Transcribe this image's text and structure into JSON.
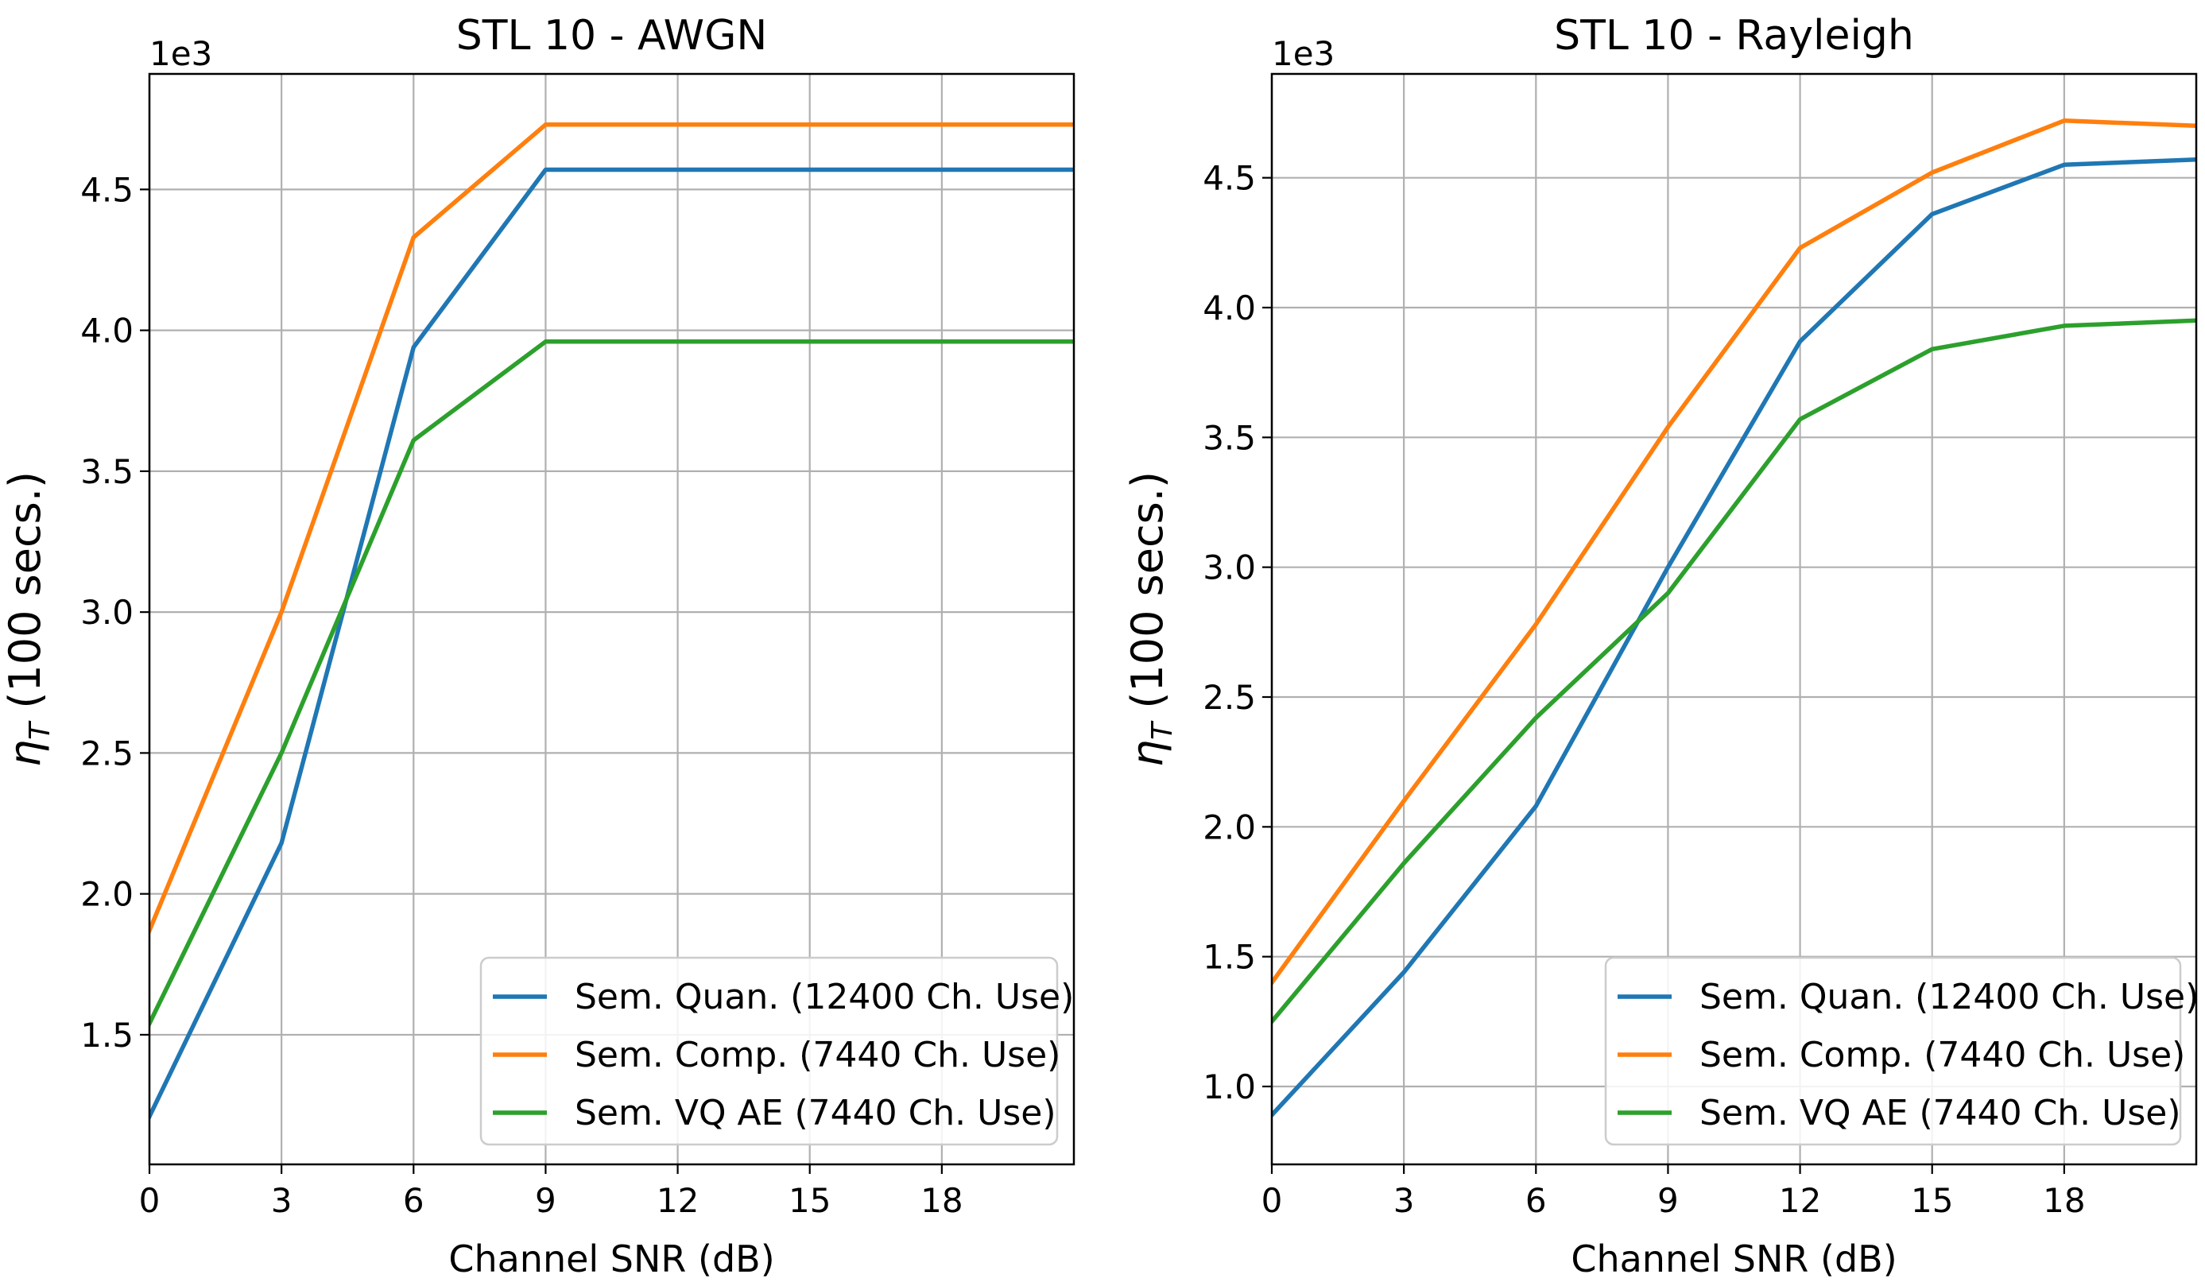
{
  "chart_data": [
    {
      "type": "line",
      "title": "STL 10 - AWGN",
      "xlabel": "Channel SNR (dB)",
      "ylabel_symbol": "η",
      "ylabel_subscript": "T",
      "ylabel_rest": " (100 secs.)",
      "y_offset_label": "1e3",
      "xlim": [
        0,
        21
      ],
      "ylim": [
        1.04,
        4.91
      ],
      "xticks": [
        0,
        3,
        6,
        9,
        12,
        15,
        18
      ],
      "xtick_labels": [
        "0",
        "3",
        "6",
        "9",
        "12",
        "15",
        "18"
      ],
      "yticks": [
        1.5,
        2.0,
        2.5,
        3.0,
        3.5,
        4.0,
        4.5
      ],
      "ytick_labels": [
        "1.5",
        "2.0",
        "2.5",
        "3.0",
        "3.5",
        "4.0",
        "4.5"
      ],
      "grid": true,
      "legend_position": "lower-right",
      "x": [
        0,
        3,
        6,
        9,
        12,
        15,
        18,
        21
      ],
      "series": [
        {
          "name": "Sem. Quan. (12400 Ch. Use)",
          "color": "#1f77b4",
          "values": [
            1.21,
            2.18,
            3.94,
            4.57,
            4.57,
            4.57,
            4.57,
            4.57
          ]
        },
        {
          "name": "Sem. Comp. (7440 Ch. Use)",
          "color": "#ff7f0e",
          "values": [
            1.87,
            3.0,
            4.33,
            4.73,
            4.73,
            4.73,
            4.73,
            4.73
          ]
        },
        {
          "name": "Sem. VQ AE (7440 Ch. Use)",
          "color": "#2ca02c",
          "values": [
            1.54,
            2.5,
            3.61,
            3.96,
            3.96,
            3.96,
            3.96,
            3.96
          ]
        }
      ]
    },
    {
      "type": "line",
      "title": "STL 10 - Rayleigh",
      "xlabel": "Channel SNR (dB)",
      "ylabel_symbol": "η",
      "ylabel_subscript": "T",
      "ylabel_rest": " (100 secs.)",
      "y_offset_label": "1e3",
      "xlim": [
        0,
        21
      ],
      "ylim": [
        0.7,
        4.9
      ],
      "xticks": [
        0,
        3,
        6,
        9,
        12,
        15,
        18
      ],
      "xtick_labels": [
        "0",
        "3",
        "6",
        "9",
        "12",
        "15",
        "18"
      ],
      "yticks": [
        1.0,
        1.5,
        2.0,
        2.5,
        3.0,
        3.5,
        4.0,
        4.5
      ],
      "ytick_labels": [
        "1.0",
        "1.5",
        "2.0",
        "2.5",
        "3.0",
        "3.5",
        "4.0",
        "4.5"
      ],
      "grid": true,
      "legend_position": "lower-right",
      "x": [
        0,
        3,
        6,
        9,
        12,
        15,
        18,
        21
      ],
      "series": [
        {
          "name": "Sem. Quan. (12400 Ch. Use)",
          "color": "#1f77b4",
          "values": [
            0.89,
            1.44,
            2.08,
            3.0,
            3.87,
            4.36,
            4.55,
            4.57
          ]
        },
        {
          "name": "Sem. Comp. (7440 Ch. Use)",
          "color": "#ff7f0e",
          "values": [
            1.4,
            2.1,
            2.78,
            3.54,
            4.23,
            4.52,
            4.72,
            4.7
          ]
        },
        {
          "name": "Sem. VQ AE (7440 Ch. Use)",
          "color": "#2ca02c",
          "values": [
            1.25,
            1.86,
            2.42,
            2.9,
            3.57,
            3.84,
            3.93,
            3.95
          ]
        }
      ]
    }
  ]
}
